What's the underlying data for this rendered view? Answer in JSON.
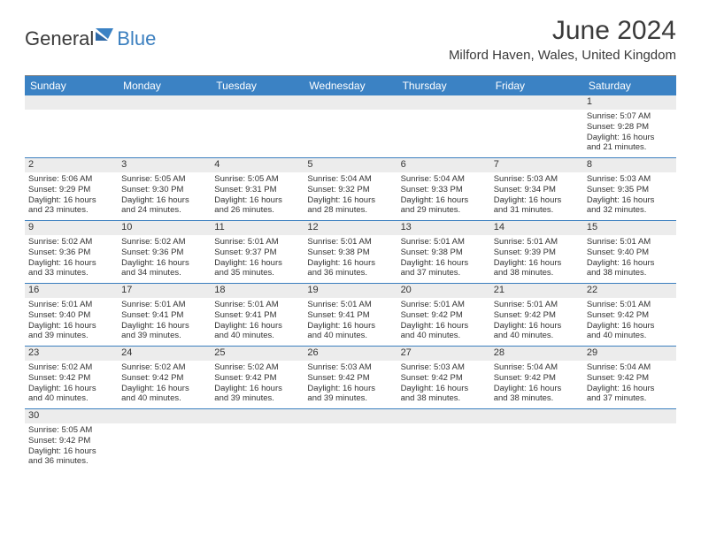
{
  "brand": {
    "part1": "General",
    "part2": "Blue"
  },
  "title": "June 2024",
  "location": "Milford Haven, Wales, United Kingdom",
  "colors": {
    "header_bg": "#3b82c4",
    "header_text": "#ffffff",
    "daynum_bg": "#ececec",
    "week_border": "#3b7fbf",
    "text": "#333333"
  },
  "weekdays": [
    "Sunday",
    "Monday",
    "Tuesday",
    "Wednesday",
    "Thursday",
    "Friday",
    "Saturday"
  ],
  "weeks": [
    [
      {
        "n": "",
        "sr": "",
        "ss": "",
        "dl1": "",
        "dl2": "",
        "empty": true
      },
      {
        "n": "",
        "sr": "",
        "ss": "",
        "dl1": "",
        "dl2": "",
        "empty": true
      },
      {
        "n": "",
        "sr": "",
        "ss": "",
        "dl1": "",
        "dl2": "",
        "empty": true
      },
      {
        "n": "",
        "sr": "",
        "ss": "",
        "dl1": "",
        "dl2": "",
        "empty": true
      },
      {
        "n": "",
        "sr": "",
        "ss": "",
        "dl1": "",
        "dl2": "",
        "empty": true
      },
      {
        "n": "",
        "sr": "",
        "ss": "",
        "dl1": "",
        "dl2": "",
        "empty": true
      },
      {
        "n": "1",
        "sr": "Sunrise: 5:07 AM",
        "ss": "Sunset: 9:28 PM",
        "dl1": "Daylight: 16 hours",
        "dl2": "and 21 minutes."
      }
    ],
    [
      {
        "n": "2",
        "sr": "Sunrise: 5:06 AM",
        "ss": "Sunset: 9:29 PM",
        "dl1": "Daylight: 16 hours",
        "dl2": "and 23 minutes."
      },
      {
        "n": "3",
        "sr": "Sunrise: 5:05 AM",
        "ss": "Sunset: 9:30 PM",
        "dl1": "Daylight: 16 hours",
        "dl2": "and 24 minutes."
      },
      {
        "n": "4",
        "sr": "Sunrise: 5:05 AM",
        "ss": "Sunset: 9:31 PM",
        "dl1": "Daylight: 16 hours",
        "dl2": "and 26 minutes."
      },
      {
        "n": "5",
        "sr": "Sunrise: 5:04 AM",
        "ss": "Sunset: 9:32 PM",
        "dl1": "Daylight: 16 hours",
        "dl2": "and 28 minutes."
      },
      {
        "n": "6",
        "sr": "Sunrise: 5:04 AM",
        "ss": "Sunset: 9:33 PM",
        "dl1": "Daylight: 16 hours",
        "dl2": "and 29 minutes."
      },
      {
        "n": "7",
        "sr": "Sunrise: 5:03 AM",
        "ss": "Sunset: 9:34 PM",
        "dl1": "Daylight: 16 hours",
        "dl2": "and 31 minutes."
      },
      {
        "n": "8",
        "sr": "Sunrise: 5:03 AM",
        "ss": "Sunset: 9:35 PM",
        "dl1": "Daylight: 16 hours",
        "dl2": "and 32 minutes."
      }
    ],
    [
      {
        "n": "9",
        "sr": "Sunrise: 5:02 AM",
        "ss": "Sunset: 9:36 PM",
        "dl1": "Daylight: 16 hours",
        "dl2": "and 33 minutes."
      },
      {
        "n": "10",
        "sr": "Sunrise: 5:02 AM",
        "ss": "Sunset: 9:36 PM",
        "dl1": "Daylight: 16 hours",
        "dl2": "and 34 minutes."
      },
      {
        "n": "11",
        "sr": "Sunrise: 5:01 AM",
        "ss": "Sunset: 9:37 PM",
        "dl1": "Daylight: 16 hours",
        "dl2": "and 35 minutes."
      },
      {
        "n": "12",
        "sr": "Sunrise: 5:01 AM",
        "ss": "Sunset: 9:38 PM",
        "dl1": "Daylight: 16 hours",
        "dl2": "and 36 minutes."
      },
      {
        "n": "13",
        "sr": "Sunrise: 5:01 AM",
        "ss": "Sunset: 9:38 PM",
        "dl1": "Daylight: 16 hours",
        "dl2": "and 37 minutes."
      },
      {
        "n": "14",
        "sr": "Sunrise: 5:01 AM",
        "ss": "Sunset: 9:39 PM",
        "dl1": "Daylight: 16 hours",
        "dl2": "and 38 minutes."
      },
      {
        "n": "15",
        "sr": "Sunrise: 5:01 AM",
        "ss": "Sunset: 9:40 PM",
        "dl1": "Daylight: 16 hours",
        "dl2": "and 38 minutes."
      }
    ],
    [
      {
        "n": "16",
        "sr": "Sunrise: 5:01 AM",
        "ss": "Sunset: 9:40 PM",
        "dl1": "Daylight: 16 hours",
        "dl2": "and 39 minutes."
      },
      {
        "n": "17",
        "sr": "Sunrise: 5:01 AM",
        "ss": "Sunset: 9:41 PM",
        "dl1": "Daylight: 16 hours",
        "dl2": "and 39 minutes."
      },
      {
        "n": "18",
        "sr": "Sunrise: 5:01 AM",
        "ss": "Sunset: 9:41 PM",
        "dl1": "Daylight: 16 hours",
        "dl2": "and 40 minutes."
      },
      {
        "n": "19",
        "sr": "Sunrise: 5:01 AM",
        "ss": "Sunset: 9:41 PM",
        "dl1": "Daylight: 16 hours",
        "dl2": "and 40 minutes."
      },
      {
        "n": "20",
        "sr": "Sunrise: 5:01 AM",
        "ss": "Sunset: 9:42 PM",
        "dl1": "Daylight: 16 hours",
        "dl2": "and 40 minutes."
      },
      {
        "n": "21",
        "sr": "Sunrise: 5:01 AM",
        "ss": "Sunset: 9:42 PM",
        "dl1": "Daylight: 16 hours",
        "dl2": "and 40 minutes."
      },
      {
        "n": "22",
        "sr": "Sunrise: 5:01 AM",
        "ss": "Sunset: 9:42 PM",
        "dl1": "Daylight: 16 hours",
        "dl2": "and 40 minutes."
      }
    ],
    [
      {
        "n": "23",
        "sr": "Sunrise: 5:02 AM",
        "ss": "Sunset: 9:42 PM",
        "dl1": "Daylight: 16 hours",
        "dl2": "and 40 minutes."
      },
      {
        "n": "24",
        "sr": "Sunrise: 5:02 AM",
        "ss": "Sunset: 9:42 PM",
        "dl1": "Daylight: 16 hours",
        "dl2": "and 40 minutes."
      },
      {
        "n": "25",
        "sr": "Sunrise: 5:02 AM",
        "ss": "Sunset: 9:42 PM",
        "dl1": "Daylight: 16 hours",
        "dl2": "and 39 minutes."
      },
      {
        "n": "26",
        "sr": "Sunrise: 5:03 AM",
        "ss": "Sunset: 9:42 PM",
        "dl1": "Daylight: 16 hours",
        "dl2": "and 39 minutes."
      },
      {
        "n": "27",
        "sr": "Sunrise: 5:03 AM",
        "ss": "Sunset: 9:42 PM",
        "dl1": "Daylight: 16 hours",
        "dl2": "and 38 minutes."
      },
      {
        "n": "28",
        "sr": "Sunrise: 5:04 AM",
        "ss": "Sunset: 9:42 PM",
        "dl1": "Daylight: 16 hours",
        "dl2": "and 38 minutes."
      },
      {
        "n": "29",
        "sr": "Sunrise: 5:04 AM",
        "ss": "Sunset: 9:42 PM",
        "dl1": "Daylight: 16 hours",
        "dl2": "and 37 minutes."
      }
    ],
    [
      {
        "n": "30",
        "sr": "Sunrise: 5:05 AM",
        "ss": "Sunset: 9:42 PM",
        "dl1": "Daylight: 16 hours",
        "dl2": "and 36 minutes."
      },
      {
        "n": "",
        "sr": "",
        "ss": "",
        "dl1": "",
        "dl2": "",
        "empty": true
      },
      {
        "n": "",
        "sr": "",
        "ss": "",
        "dl1": "",
        "dl2": "",
        "empty": true
      },
      {
        "n": "",
        "sr": "",
        "ss": "",
        "dl1": "",
        "dl2": "",
        "empty": true
      },
      {
        "n": "",
        "sr": "",
        "ss": "",
        "dl1": "",
        "dl2": "",
        "empty": true
      },
      {
        "n": "",
        "sr": "",
        "ss": "",
        "dl1": "",
        "dl2": "",
        "empty": true
      },
      {
        "n": "",
        "sr": "",
        "ss": "",
        "dl1": "",
        "dl2": "",
        "empty": true
      }
    ]
  ]
}
